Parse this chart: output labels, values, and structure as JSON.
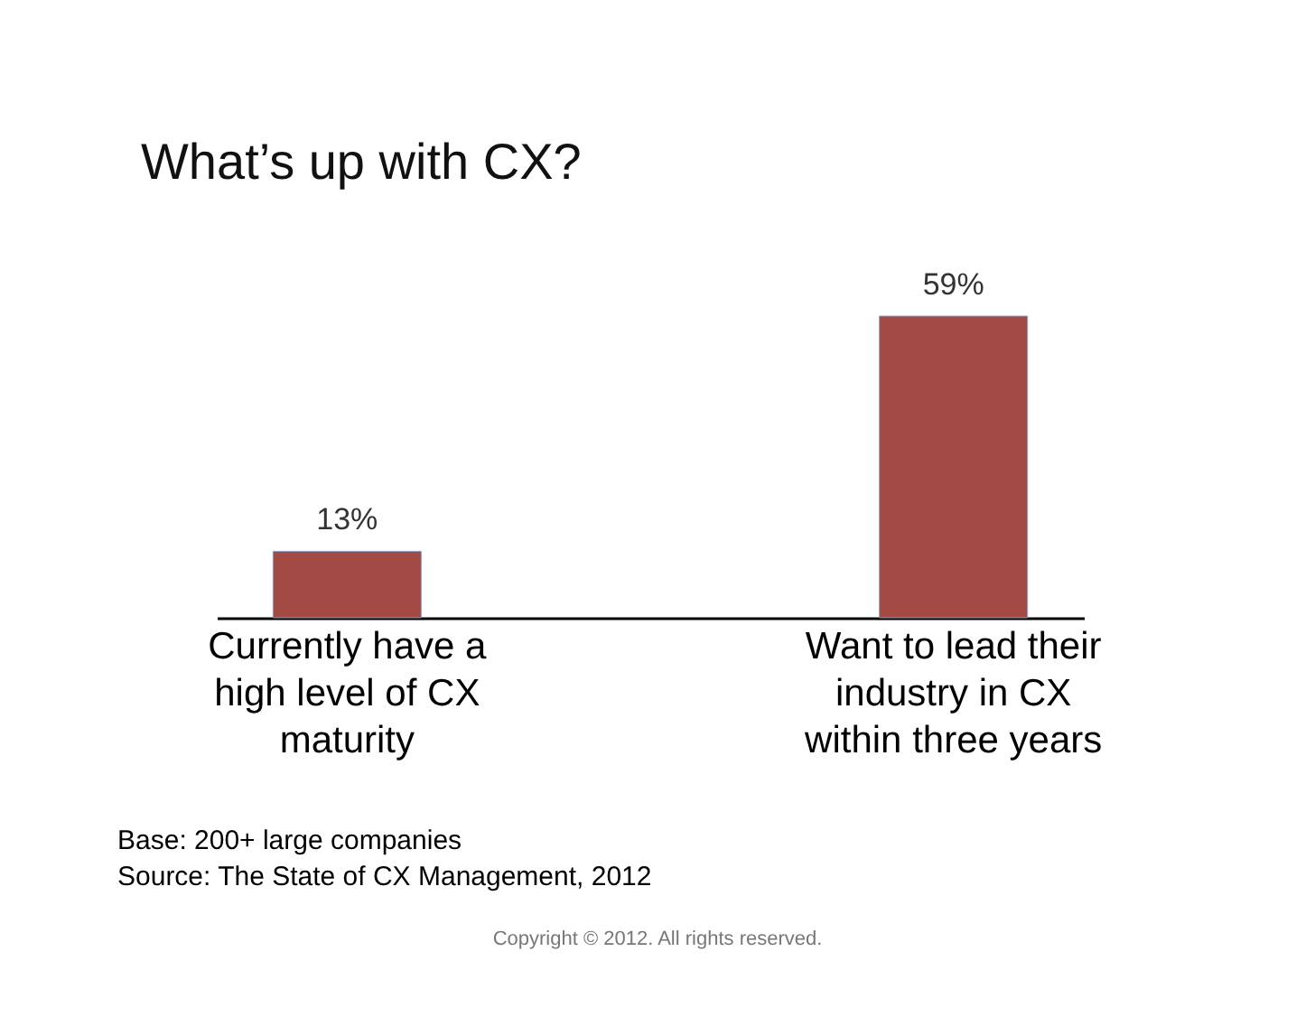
{
  "chart_data": {
    "type": "bar",
    "title": "What’s up with CX?",
    "categories": [
      "Currently have a high level of CX maturity",
      "Want to lead their industry in CX within three years"
    ],
    "values": [
      13,
      59
    ],
    "value_labels": [
      "13%",
      "59%"
    ],
    "color": "#a34a44",
    "tick_labels": "x",
    "annotations": [
      "Base: 200+ large companies",
      "Source: The State of CX Management, 2012",
      "Copyright © 2012. All rights reserved."
    ]
  }
}
